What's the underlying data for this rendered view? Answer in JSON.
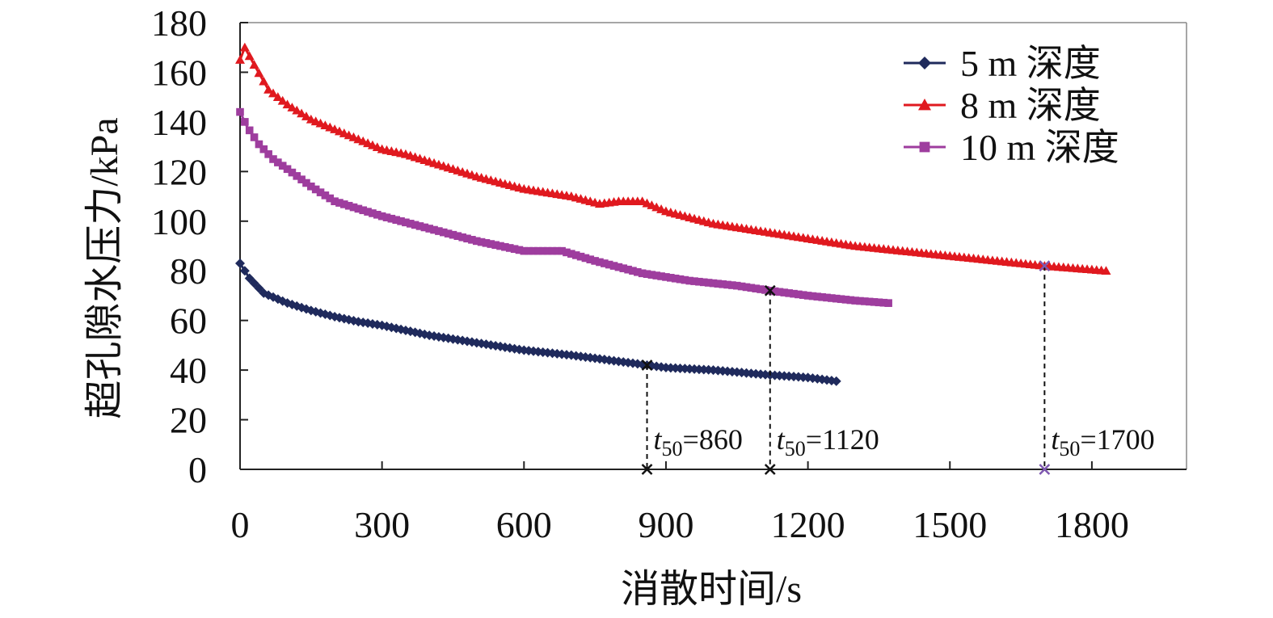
{
  "chart_data": {
    "type": "line",
    "title": "",
    "xlabel": "消散时间/s",
    "ylabel": "超孔隙水压力/kPa",
    "xlim": [
      0,
      2000
    ],
    "ylim": [
      0,
      180
    ],
    "xticks": [
      0,
      300,
      600,
      900,
      1200,
      1500,
      1800
    ],
    "yticks": [
      0,
      20,
      40,
      60,
      80,
      100,
      120,
      140,
      160,
      180
    ],
    "grid": false,
    "legend_position": "top-right",
    "series": [
      {
        "name": "5 m 深度",
        "color": "#1f2a5c",
        "marker": "diamond",
        "x": [
          0,
          20,
          50,
          100,
          150,
          200,
          250,
          300,
          400,
          500,
          600,
          700,
          800,
          860,
          900,
          1000,
          1120,
          1200,
          1260
        ],
        "y": [
          83,
          77,
          71,
          67,
          64,
          61.5,
          59.5,
          58,
          54,
          51,
          48,
          46,
          43.5,
          42,
          41,
          40,
          38,
          37,
          35.5
        ]
      },
      {
        "name": "8 m 深度",
        "color": "#e0191f",
        "marker": "triangle",
        "x": [
          0,
          10,
          30,
          60,
          100,
          150,
          200,
          250,
          300,
          350,
          400,
          500,
          600,
          700,
          760,
          800,
          850,
          900,
          1000,
          1100,
          1200,
          1300,
          1400,
          1500,
          1600,
          1700,
          1800,
          1830
        ],
        "y": [
          165,
          170,
          163,
          153,
          147,
          141,
          137,
          133,
          129,
          127,
          124,
          118,
          113,
          110,
          107,
          108,
          108,
          104,
          99,
          96,
          93,
          90,
          88,
          86,
          84,
          82,
          80.5,
          80
        ]
      },
      {
        "name": "10 m 深度",
        "color": "#9e3d9e",
        "marker": "square",
        "x": [
          0,
          15,
          40,
          70,
          100,
          150,
          200,
          300,
          400,
          500,
          600,
          680,
          750,
          850,
          950,
          1050,
          1120,
          1200,
          1300,
          1370
        ],
        "y": [
          144,
          138,
          131,
          125,
          121,
          114,
          108,
          102,
          97,
          92,
          88,
          88,
          84,
          79,
          76,
          74,
          72,
          70,
          68,
          67
        ]
      }
    ],
    "annotations": [
      {
        "x": 860,
        "y": 42,
        "series": "5 m 深度",
        "label_prefix": "t",
        "label_sub": "50",
        "label_value": "=860",
        "color": "#111111"
      },
      {
        "x": 1120,
        "y": 72,
        "series": "10 m 深度",
        "label_prefix": "t",
        "label_sub": "50",
        "label_value": "=1120",
        "color": "#111111"
      },
      {
        "x": 1700,
        "y": 82,
        "series": "8 m 深度",
        "label_prefix": "t",
        "label_sub": "50",
        "label_value": "=1700",
        "color": "#7e57b0"
      }
    ]
  }
}
